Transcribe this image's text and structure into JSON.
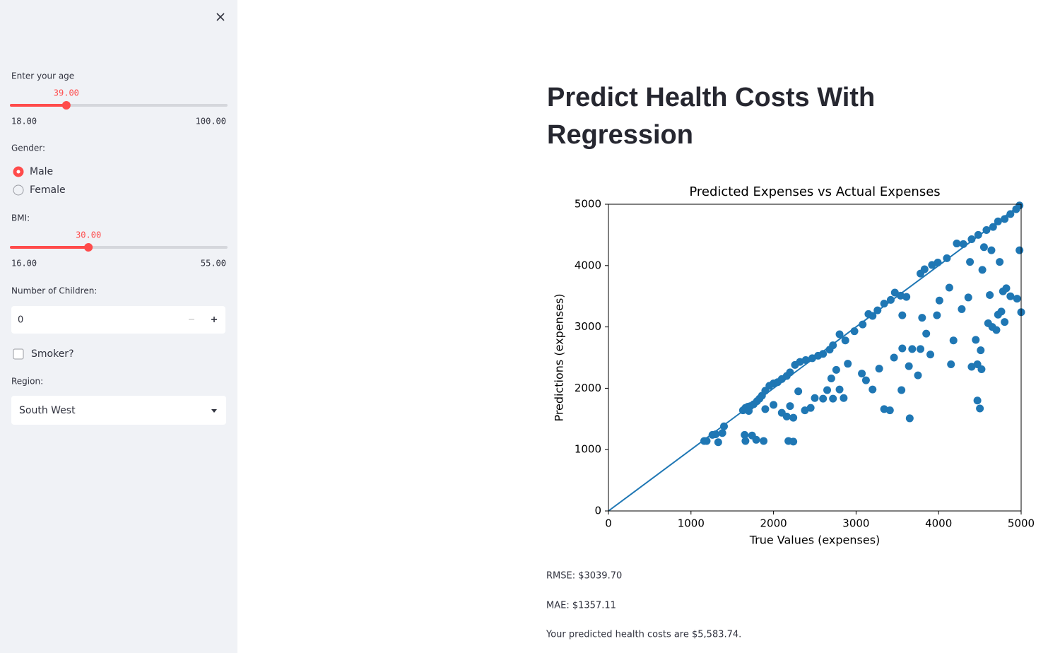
{
  "sidebar": {
    "age": {
      "label": "Enter your age",
      "value": "39.00",
      "min": "18.00",
      "max": "100.00"
    },
    "gender": {
      "label": "Gender:",
      "options": [
        "Male",
        "Female"
      ],
      "selected": 0
    },
    "bmi": {
      "label": "BMI:",
      "value": "30.00",
      "min": "16.00",
      "max": "55.00"
    },
    "children": {
      "label": "Number of Children:",
      "value": "0"
    },
    "smoker": {
      "label": "Smoker?",
      "checked": false
    },
    "region": {
      "label": "Region:",
      "value": "South West"
    }
  },
  "main": {
    "title": "Predict Health Costs With Regression",
    "rmse": "RMSE: $3039.70",
    "mae": "MAE: $1357.11",
    "prediction": "Your predicted health costs are $5,583.74."
  },
  "chart_data": {
    "type": "scatter",
    "title": "Predicted Expenses vs Actual Expenses",
    "x_label": "True Values (expenses)",
    "y_label": "Predictions (expenses)",
    "color": "#1f77b4",
    "xlim": [
      0,
      5000
    ],
    "ylim": [
      0,
      5000
    ],
    "xticks": [
      0,
      1000,
      2000,
      3000,
      4000,
      5000
    ],
    "yticks": [
      0,
      1000,
      2000,
      3000,
      4000,
      5000
    ],
    "reference_line": {
      "x": [
        0,
        5000
      ],
      "values": [
        0,
        5000
      ]
    },
    "x": [
      1160,
      1190,
      1260,
      1300,
      1330,
      1380,
      1400,
      1630,
      1660,
      1690,
      1720,
      1760,
      1800,
      1830,
      1860,
      1900,
      1950,
      2000,
      2050,
      2100,
      2160,
      2200,
      2260,
      2320,
      2390,
      2470,
      2540,
      2600,
      2680,
      2720,
      2800,
      2870,
      2980,
      3080,
      3150,
      3200,
      3260,
      3340,
      3420,
      3470,
      3540,
      3610,
      3780,
      3830,
      3920,
      3990,
      4100,
      4220,
      4300,
      4400,
      4480,
      4580,
      4660,
      4720,
      4800,
      4870,
      4940,
      4980,
      1650,
      1660,
      1740,
      1790,
      1880,
      2180,
      2240,
      1700,
      1900,
      2000,
      2100,
      2160,
      2200,
      2240,
      2300,
      2380,
      2450,
      2500,
      2600,
      2650,
      2720,
      2800,
      2850,
      2700,
      2760,
      2900,
      3070,
      3120,
      3200,
      3280,
      3340,
      3410,
      3460,
      3550,
      3560,
      3560,
      3640,
      3650,
      3680,
      3750,
      3780,
      3800,
      3850,
      3900,
      3980,
      4010,
      4130,
      4150,
      4180,
      4280,
      4360,
      4380,
      4400,
      4450,
      4470,
      4470,
      4500,
      4510,
      4520,
      4530,
      4550,
      4600,
      4620,
      4650,
      4700,
      4720,
      4760,
      4780,
      4800,
      4820,
      4870,
      4950,
      5000,
      4980,
      4640,
      4740
    ],
    "values": [
      1140,
      1140,
      1240,
      1250,
      1120,
      1270,
      1380,
      1640,
      1680,
      1700,
      1710,
      1740,
      1790,
      1830,
      1880,
      1960,
      2040,
      2080,
      2100,
      2150,
      2200,
      2260,
      2380,
      2430,
      2460,
      2490,
      2530,
      2560,
      2630,
      2700,
      2880,
      2780,
      2930,
      3040,
      3210,
      3180,
      3270,
      3380,
      3440,
      3560,
      3510,
      3490,
      3870,
      3940,
      4010,
      4050,
      4120,
      4360,
      4350,
      4430,
      4500,
      4580,
      4630,
      4720,
      4760,
      4840,
      4920,
      4980,
      1240,
      1140,
      1230,
      1160,
      1140,
      1140,
      1130,
      1630,
      1660,
      1730,
      1600,
      1540,
      1710,
      1520,
      1950,
      1640,
      1680,
      1840,
      1830,
      1970,
      1830,
      1980,
      1840,
      2160,
      2300,
      2400,
      2240,
      2130,
      1980,
      2320,
      1660,
      1640,
      2500,
      1970,
      2650,
      3190,
      2360,
      1510,
      2640,
      2210,
      2640,
      3150,
      2890,
      2550,
      3190,
      3430,
      3640,
      2390,
      2780,
      3290,
      3480,
      4060,
      2350,
      2790,
      2390,
      1800,
      1670,
      2620,
      2310,
      3930,
      4300,
      3060,
      3520,
      3000,
      2950,
      3200,
      3250,
      3580,
      3080,
      3630,
      3500,
      3460,
      3240,
      4250,
      4250,
      4060
    ]
  }
}
